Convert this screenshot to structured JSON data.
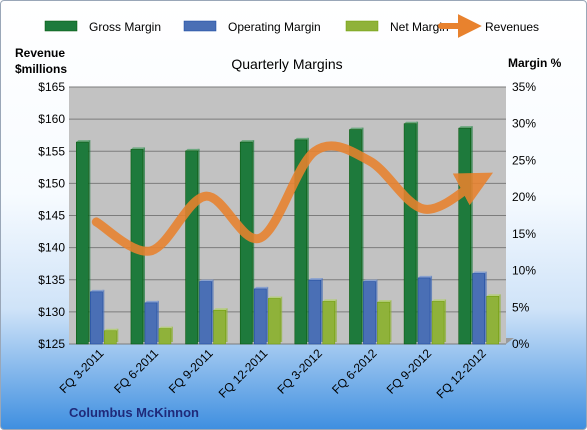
{
  "chart_data": {
    "type": "bar",
    "title": "Quarterly Margins",
    "categories": [
      "FQ 3-2011",
      "FQ 6-2011",
      "FQ 9-2011",
      "FQ 12-2011",
      "FQ 3-2012",
      "FQ 6-2012",
      "FQ 9-2012",
      "FQ 12-2012"
    ],
    "series": [
      {
        "name": "Gross Margin",
        "type": "bar",
        "axis": "right",
        "color": "#1e7a3c",
        "values": [
          27.5,
          26.5,
          26.3,
          27.5,
          27.8,
          29.2,
          30.0,
          29.4
        ]
      },
      {
        "name": "Operating Margin",
        "type": "bar",
        "axis": "right",
        "color": "#4a6fb5",
        "values": [
          7.1,
          5.6,
          8.5,
          7.5,
          8.7,
          8.5,
          9.0,
          9.6
        ]
      },
      {
        "name": "Net Margin",
        "type": "bar",
        "axis": "right",
        "color": "#8fb23a",
        "values": [
          1.8,
          2.1,
          4.6,
          6.2,
          5.8,
          5.7,
          5.8,
          6.5
        ]
      },
      {
        "name": "Revenues",
        "type": "line",
        "axis": "left",
        "color": "#e8822e",
        "values": [
          144.0,
          139.5,
          148.0,
          141.5,
          155.0,
          153.5,
          146.0,
          150.5
        ]
      }
    ],
    "y_left": {
      "label_line1": "Revenue",
      "label_line2": "$millions",
      "range": [
        125,
        165
      ],
      "ticks": [
        "$125",
        "$130",
        "$135",
        "$140",
        "$145",
        "$150",
        "$155",
        "$160",
        "$165"
      ]
    },
    "y_right": {
      "label": "Margin %",
      "range": [
        0,
        35
      ],
      "ticks": [
        "0%",
        "5%",
        "10%",
        "15%",
        "20%",
        "25%",
        "30%",
        "35%"
      ]
    },
    "grid": true,
    "legend": "top",
    "annotation": "Columbus McKinnon"
  }
}
